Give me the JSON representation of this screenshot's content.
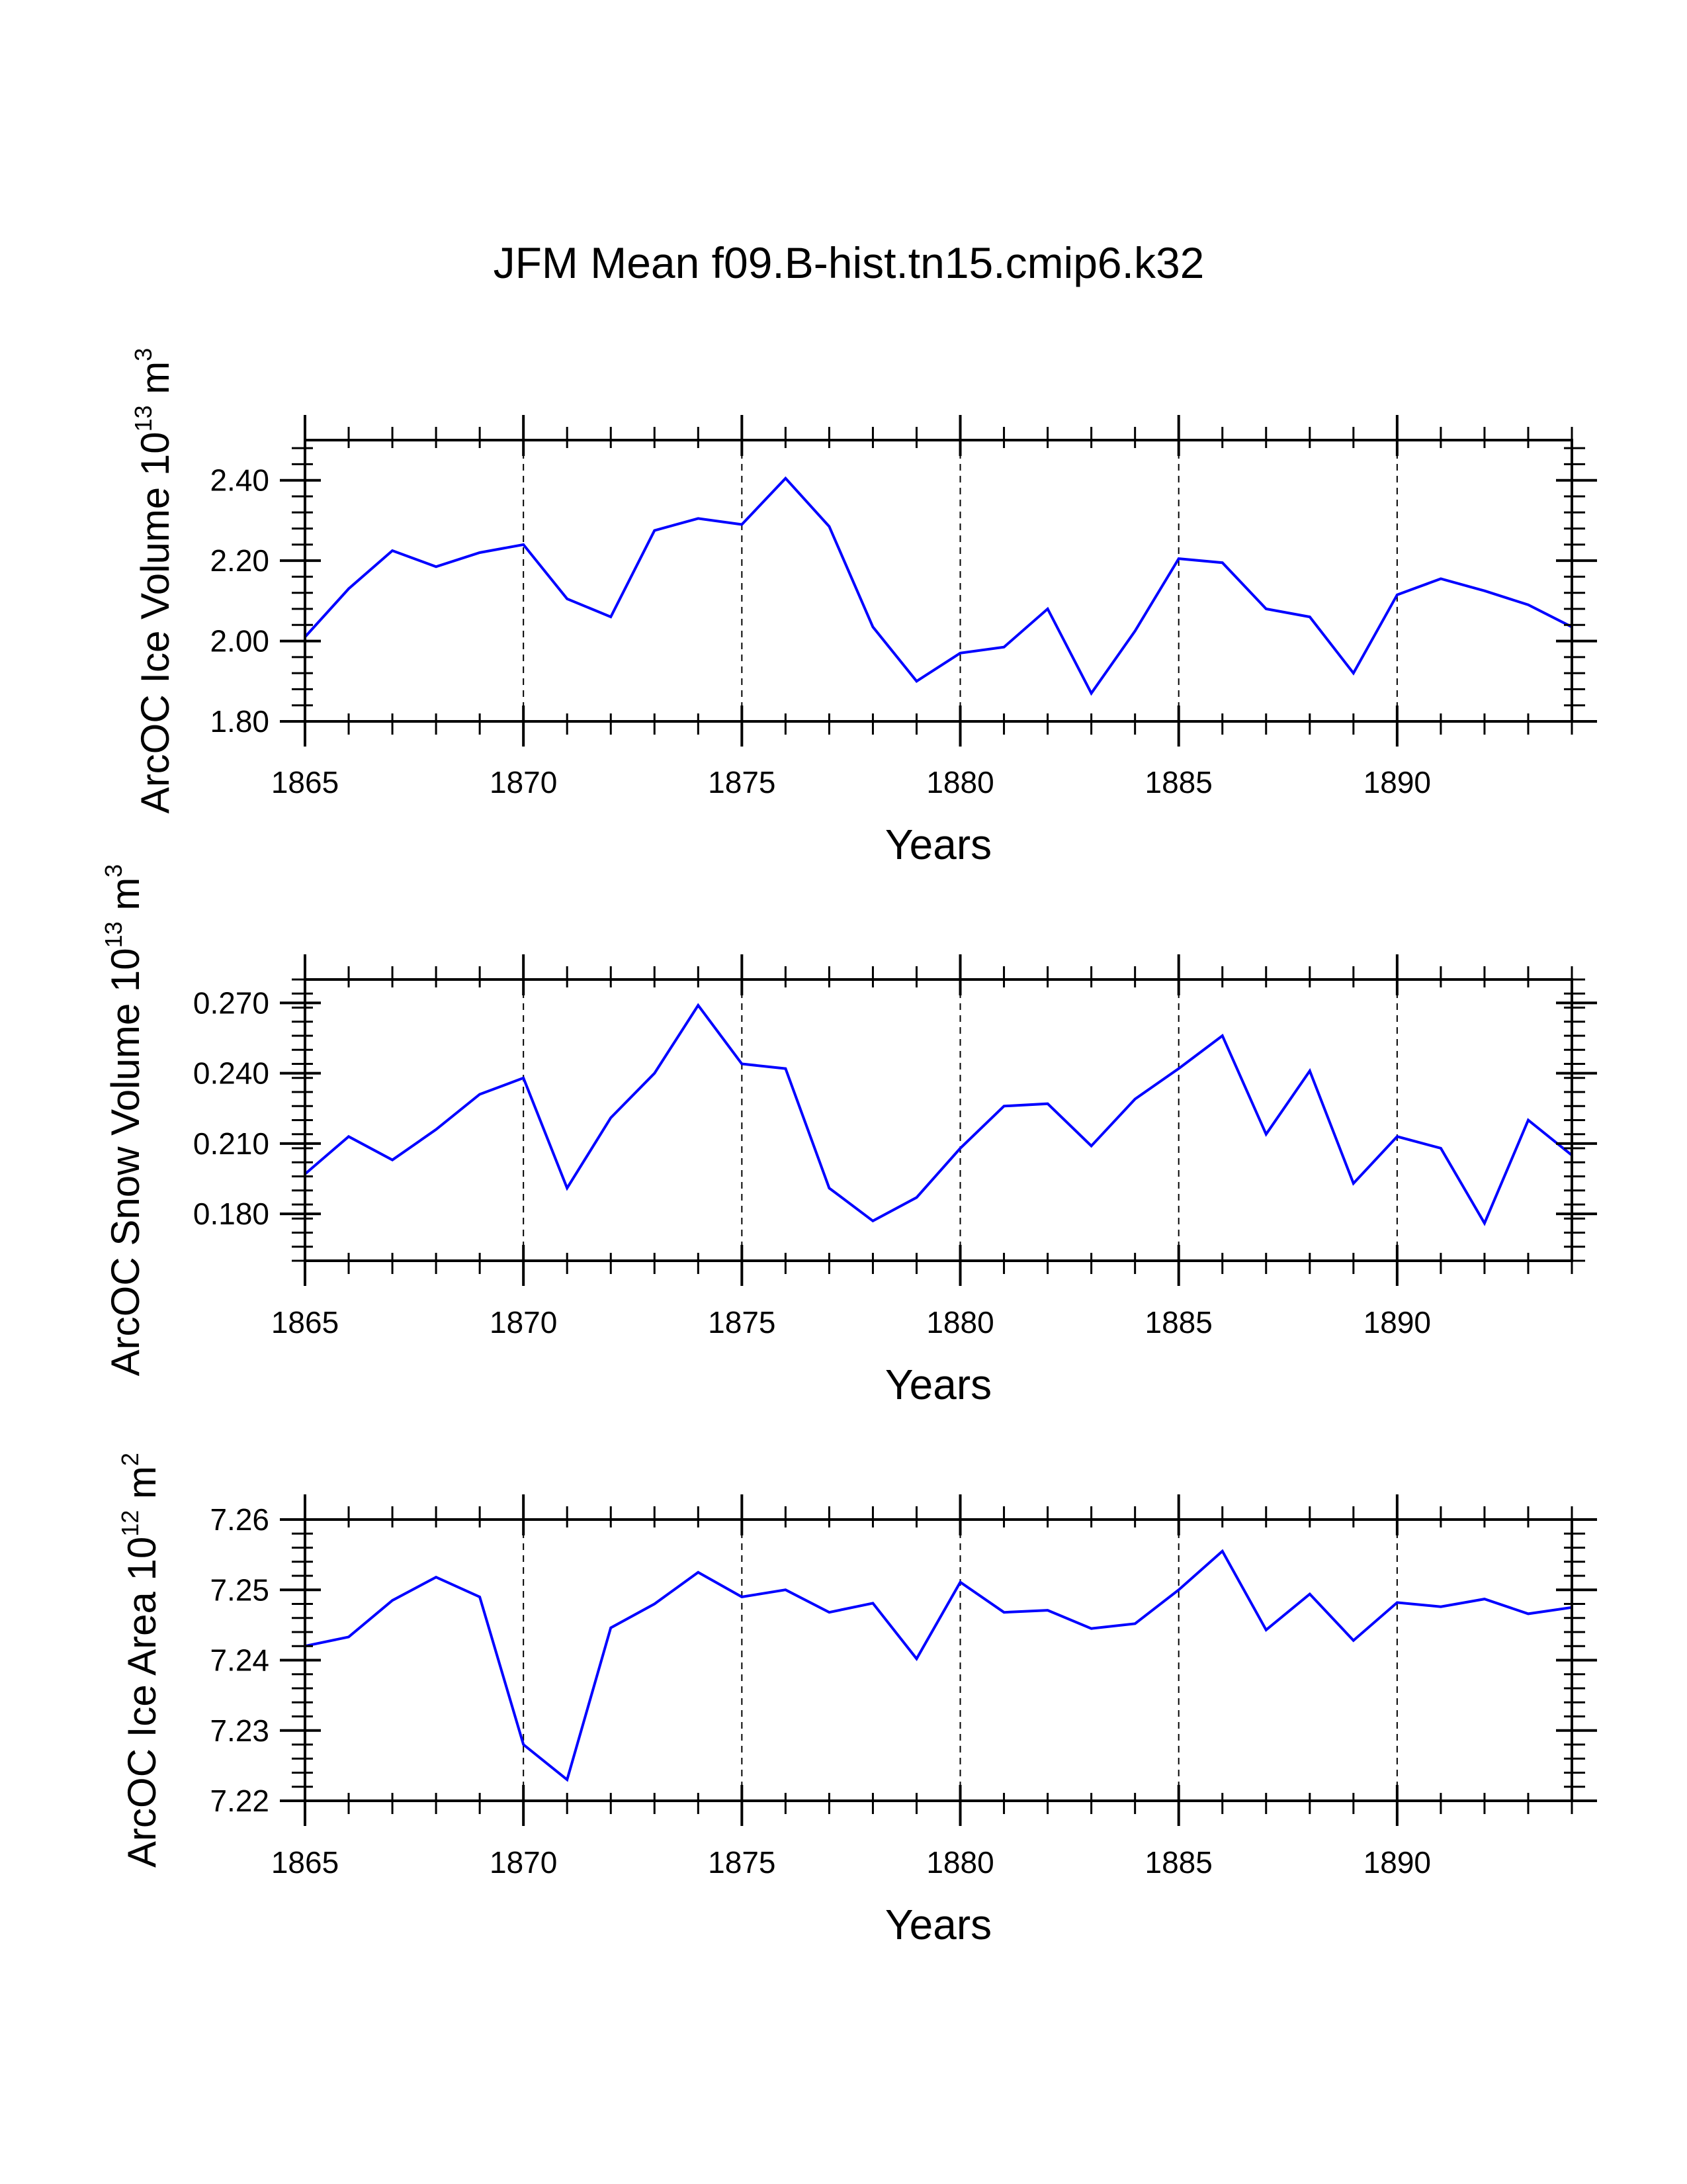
{
  "title": "JFM Mean f09.B-hist.tn15.cmip6.k32",
  "colors": {
    "line": "#0000ff",
    "axis": "#000000",
    "grid": "#000000",
    "background": "#ffffff"
  },
  "chart_data": [
    {
      "type": "line",
      "title": "JFM Mean f09.B-hist.tn15.cmip6.k32",
      "xlabel": "Years",
      "ylabel": {
        "prefix": "ArcOC Ice Volume 10",
        "exp": "13",
        "unit": " m",
        "unit_exp": "3"
      },
      "xlim": [
        1865,
        1894
      ],
      "ylim": [
        1.8,
        2.5
      ],
      "xticks": [
        "1865",
        "1870",
        "1875",
        "1880",
        "1885",
        "1890"
      ],
      "yticks": [
        "1.80",
        "2.00",
        "2.20",
        "2.40"
      ],
      "grid": "vertical dashed at major x ticks",
      "series": [
        {
          "name": "ArcOC Ice Volume",
          "x": [
            1865,
            1866,
            1867,
            1868,
            1869,
            1870,
            1871,
            1872,
            1873,
            1874,
            1875,
            1876,
            1877,
            1878,
            1879,
            1880,
            1881,
            1882,
            1883,
            1884,
            1885,
            1886,
            1887,
            1888,
            1889,
            1890,
            1891,
            1892,
            1893,
            1894
          ],
          "values": [
            2.01,
            2.13,
            2.225,
            2.185,
            2.22,
            2.24,
            2.105,
            2.06,
            2.275,
            2.305,
            2.29,
            2.405,
            2.285,
            2.035,
            1.9,
            1.97,
            1.985,
            2.08,
            1.87,
            2.025,
            2.205,
            2.195,
            2.08,
            2.06,
            1.92,
            2.115,
            2.155,
            2.125,
            2.09,
            2.035
          ]
        }
      ]
    },
    {
      "type": "line",
      "xlabel": "Years",
      "ylabel": {
        "prefix": "ArcOC Snow Volume 10",
        "exp": "13",
        "unit": " m",
        "unit_exp": "3"
      },
      "xlim": [
        1865,
        1894
      ],
      "ylim": [
        0.16,
        0.28
      ],
      "xticks": [
        "1865",
        "1870",
        "1875",
        "1880",
        "1885",
        "1890"
      ],
      "yticks": [
        "0.180",
        "0.210",
        "0.240",
        "0.270"
      ],
      "grid": "vertical dashed at major x ticks",
      "series": [
        {
          "name": "ArcOC Snow Volume",
          "x": [
            1865,
            1866,
            1867,
            1868,
            1869,
            1870,
            1871,
            1872,
            1873,
            1874,
            1875,
            1876,
            1877,
            1878,
            1879,
            1880,
            1881,
            1882,
            1883,
            1884,
            1885,
            1886,
            1887,
            1888,
            1889,
            1890,
            1891,
            1892,
            1893,
            1894
          ],
          "values": [
            0.197,
            0.213,
            0.203,
            0.216,
            0.231,
            0.238,
            0.191,
            0.221,
            0.24,
            0.269,
            0.244,
            0.242,
            0.191,
            0.177,
            0.187,
            0.208,
            0.226,
            0.227,
            0.209,
            0.229,
            0.242,
            0.256,
            0.214,
            0.241,
            0.193,
            0.213,
            0.208,
            0.176,
            0.22,
            0.205
          ]
        }
      ]
    },
    {
      "type": "line",
      "xlabel": "Years",
      "ylabel": {
        "prefix": "ArcOC Ice Area 10",
        "exp": "12",
        "unit": " m",
        "unit_exp": "2"
      },
      "xlim": [
        1865,
        1894
      ],
      "ylim": [
        7.22,
        7.26
      ],
      "xticks": [
        "1865",
        "1870",
        "1875",
        "1880",
        "1885",
        "1890"
      ],
      "yticks": [
        "7.22",
        "7.23",
        "7.24",
        "7.25",
        "7.26"
      ],
      "grid": "vertical dashed at major x ticks",
      "series": [
        {
          "name": "ArcOC Ice Area",
          "x": [
            1865,
            1866,
            1867,
            1868,
            1869,
            1870,
            1871,
            1872,
            1873,
            1874,
            1875,
            1876,
            1877,
            1878,
            1879,
            1880,
            1881,
            1882,
            1883,
            1884,
            1885,
            1886,
            1887,
            1888,
            1889,
            1890,
            1891,
            1892,
            1893,
            1894
          ],
          "values": [
            7.242,
            7.2433,
            7.2485,
            7.2518,
            7.249,
            7.228,
            7.223,
            7.2446,
            7.248,
            7.2525,
            7.249,
            7.25,
            7.2468,
            7.2481,
            7.2402,
            7.2511,
            7.2468,
            7.2471,
            7.2445,
            7.2452,
            7.25,
            7.2555,
            7.2443,
            7.2494,
            7.2428,
            7.2482,
            7.2476,
            7.2487,
            7.2466,
            7.2475
          ]
        }
      ]
    }
  ]
}
